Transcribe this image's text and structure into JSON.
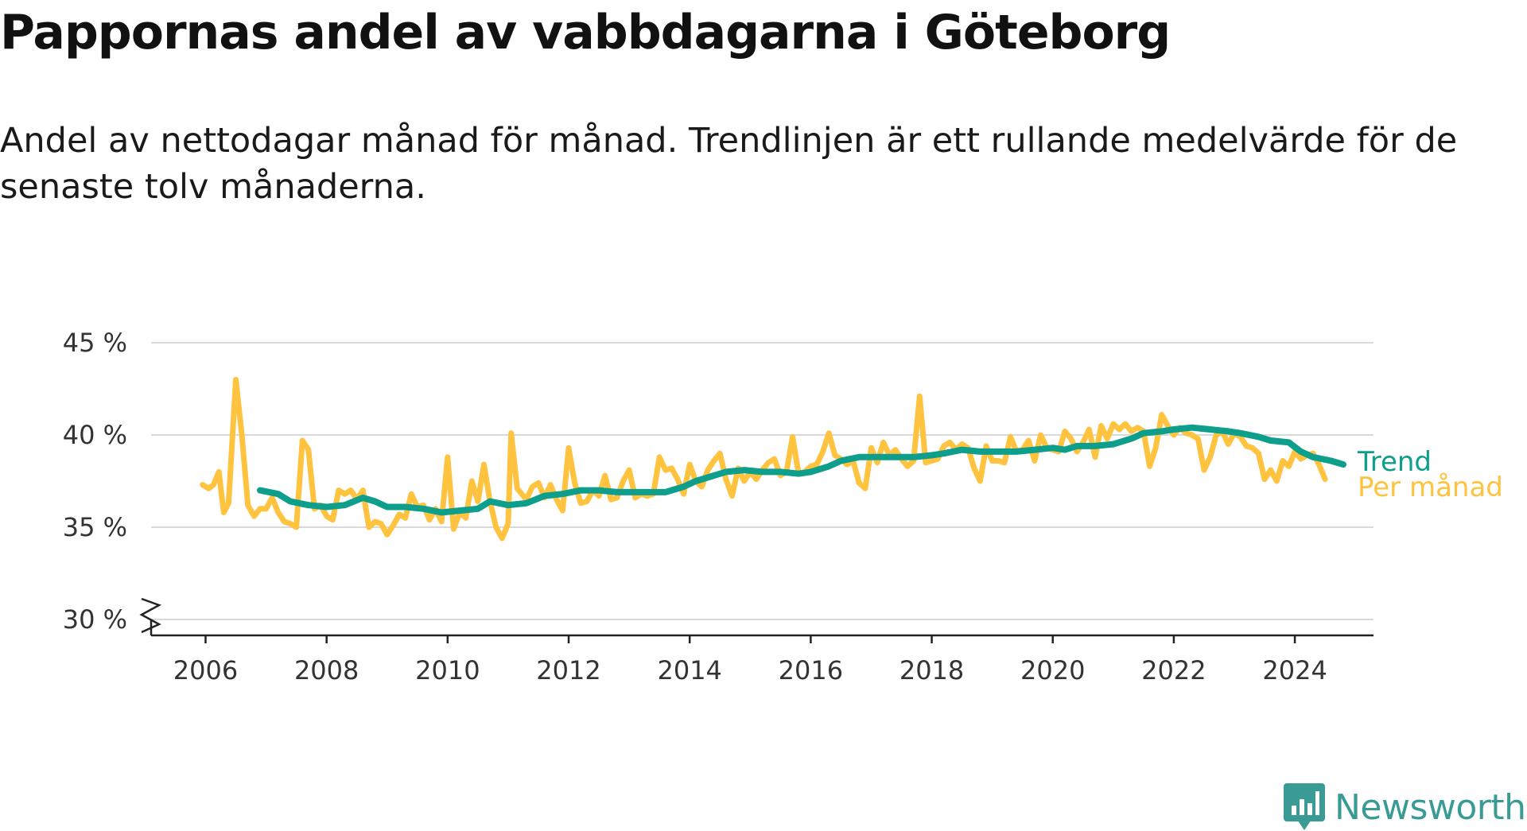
{
  "chart_data": {
    "type": "line",
    "title": "Pappornas andel av vabbdagarna i Göteborg",
    "subtitle": "Andel av nettodagar månad för månad. Trendlinjen är ett rullande medelvärde för de senaste tolv månaderna.",
    "y_unit": "%",
    "ylim": [
      30,
      45
    ],
    "y_ticks": [
      {
        "value": 30,
        "label": "30 %"
      },
      {
        "value": 35,
        "label": "35 %"
      },
      {
        "value": 40,
        "label": "40 %"
      },
      {
        "value": 45,
        "label": "45 %"
      }
    ],
    "y_axis_break": true,
    "x_range": [
      2005.1,
      2025.3
    ],
    "x_ticks": [
      {
        "value": 2006,
        "label": "2006"
      },
      {
        "value": 2008,
        "label": "2008"
      },
      {
        "value": 2010,
        "label": "2010"
      },
      {
        "value": 2012,
        "label": "2012"
      },
      {
        "value": 2014,
        "label": "2014"
      },
      {
        "value": 2016,
        "label": "2016"
      },
      {
        "value": 2018,
        "label": "2018"
      },
      {
        "value": 2020,
        "label": "2020"
      },
      {
        "value": 2022,
        "label": "2022"
      },
      {
        "value": 2024,
        "label": "2024"
      }
    ],
    "grid": true,
    "legend": "direct-labels-right",
    "series": [
      {
        "name": "Per månad",
        "color": "#ffc340",
        "points": [
          [
            2005.95,
            37.3
          ],
          [
            2006.05,
            37.1
          ],
          [
            2006.13,
            37.3
          ],
          [
            2006.22,
            38.0
          ],
          [
            2006.3,
            35.8
          ],
          [
            2006.38,
            36.3
          ],
          [
            2006.5,
            43.0
          ],
          [
            2006.6,
            40.0
          ],
          [
            2006.7,
            36.2
          ],
          [
            2006.8,
            35.6
          ],
          [
            2006.9,
            36.0
          ],
          [
            2007.0,
            36.0
          ],
          [
            2007.1,
            36.6
          ],
          [
            2007.2,
            35.8
          ],
          [
            2007.3,
            35.3
          ],
          [
            2007.4,
            35.2
          ],
          [
            2007.5,
            35.0
          ],
          [
            2007.6,
            39.7
          ],
          [
            2007.7,
            39.2
          ],
          [
            2007.8,
            36.0
          ],
          [
            2007.9,
            36.2
          ],
          [
            2008.0,
            35.6
          ],
          [
            2008.1,
            35.4
          ],
          [
            2008.2,
            37.0
          ],
          [
            2008.3,
            36.8
          ],
          [
            2008.4,
            37.0
          ],
          [
            2008.5,
            36.5
          ],
          [
            2008.6,
            37.0
          ],
          [
            2008.7,
            35.0
          ],
          [
            2008.8,
            35.3
          ],
          [
            2008.9,
            35.2
          ],
          [
            2009.0,
            34.6
          ],
          [
            2009.1,
            35.1
          ],
          [
            2009.2,
            35.7
          ],
          [
            2009.3,
            35.5
          ],
          [
            2009.4,
            36.8
          ],
          [
            2009.5,
            36.1
          ],
          [
            2009.6,
            36.2
          ],
          [
            2009.7,
            35.4
          ],
          [
            2009.8,
            36.0
          ],
          [
            2009.9,
            35.3
          ],
          [
            2010.0,
            38.8
          ],
          [
            2010.1,
            34.9
          ],
          [
            2010.2,
            35.8
          ],
          [
            2010.3,
            35.5
          ],
          [
            2010.4,
            37.5
          ],
          [
            2010.5,
            36.4
          ],
          [
            2010.6,
            38.4
          ],
          [
            2010.7,
            36.4
          ],
          [
            2010.8,
            35.0
          ],
          [
            2010.9,
            34.4
          ],
          [
            2011.0,
            35.2
          ],
          [
            2011.05,
            40.1
          ],
          [
            2011.15,
            37.1
          ],
          [
            2011.3,
            36.5
          ],
          [
            2011.4,
            37.2
          ],
          [
            2011.5,
            37.4
          ],
          [
            2011.6,
            36.6
          ],
          [
            2011.7,
            37.3
          ],
          [
            2011.8,
            36.5
          ],
          [
            2011.9,
            35.9
          ],
          [
            2012.0,
            39.3
          ],
          [
            2012.1,
            37.4
          ],
          [
            2012.2,
            36.3
          ],
          [
            2012.3,
            36.4
          ],
          [
            2012.4,
            37.0
          ],
          [
            2012.5,
            36.7
          ],
          [
            2012.6,
            37.8
          ],
          [
            2012.7,
            36.5
          ],
          [
            2012.8,
            36.6
          ],
          [
            2012.9,
            37.5
          ],
          [
            2013.0,
            38.1
          ],
          [
            2013.1,
            36.6
          ],
          [
            2013.2,
            36.8
          ],
          [
            2013.3,
            36.7
          ],
          [
            2013.4,
            36.8
          ],
          [
            2013.5,
            38.8
          ],
          [
            2013.6,
            38.1
          ],
          [
            2013.7,
            38.2
          ],
          [
            2013.8,
            37.6
          ],
          [
            2013.9,
            36.8
          ],
          [
            2014.0,
            38.4
          ],
          [
            2014.1,
            37.5
          ],
          [
            2014.2,
            37.2
          ],
          [
            2014.3,
            38.1
          ],
          [
            2014.4,
            38.6
          ],
          [
            2014.5,
            39.0
          ],
          [
            2014.6,
            37.6
          ],
          [
            2014.7,
            36.7
          ],
          [
            2014.8,
            38.2
          ],
          [
            2014.9,
            37.5
          ],
          [
            2015.0,
            38.0
          ],
          [
            2015.1,
            37.6
          ],
          [
            2015.2,
            38.1
          ],
          [
            2015.3,
            38.5
          ],
          [
            2015.4,
            38.7
          ],
          [
            2015.5,
            37.8
          ],
          [
            2015.6,
            38.0
          ],
          [
            2015.7,
            39.9
          ],
          [
            2015.8,
            37.9
          ],
          [
            2015.9,
            38.0
          ],
          [
            2016.0,
            38.3
          ],
          [
            2016.1,
            38.4
          ],
          [
            2016.2,
            39.1
          ],
          [
            2016.3,
            40.1
          ],
          [
            2016.4,
            38.9
          ],
          [
            2016.5,
            38.7
          ],
          [
            2016.6,
            38.4
          ],
          [
            2016.7,
            38.6
          ],
          [
            2016.8,
            37.4
          ],
          [
            2016.9,
            37.1
          ],
          [
            2017.0,
            39.3
          ],
          [
            2017.1,
            38.5
          ],
          [
            2017.2,
            39.6
          ],
          [
            2017.3,
            38.9
          ],
          [
            2017.4,
            39.2
          ],
          [
            2017.5,
            38.7
          ],
          [
            2017.6,
            38.3
          ],
          [
            2017.7,
            38.6
          ],
          [
            2017.8,
            42.1
          ],
          [
            2017.9,
            38.5
          ],
          [
            2018.0,
            38.6
          ],
          [
            2018.1,
            38.7
          ],
          [
            2018.2,
            39.4
          ],
          [
            2018.3,
            39.6
          ],
          [
            2018.4,
            39.2
          ],
          [
            2018.5,
            39.5
          ],
          [
            2018.6,
            39.3
          ],
          [
            2018.7,
            38.2
          ],
          [
            2018.8,
            37.5
          ],
          [
            2018.9,
            39.4
          ],
          [
            2019.0,
            38.6
          ],
          [
            2019.1,
            38.6
          ],
          [
            2019.2,
            38.5
          ],
          [
            2019.3,
            39.9
          ],
          [
            2019.4,
            39.1
          ],
          [
            2019.5,
            39.2
          ],
          [
            2019.6,
            39.7
          ],
          [
            2019.7,
            38.6
          ],
          [
            2019.8,
            40.0
          ],
          [
            2019.9,
            39.3
          ],
          [
            2020.0,
            39.2
          ],
          [
            2020.1,
            39.1
          ],
          [
            2020.2,
            40.2
          ],
          [
            2020.3,
            39.8
          ],
          [
            2020.4,
            39.1
          ],
          [
            2020.5,
            39.6
          ],
          [
            2020.6,
            40.3
          ],
          [
            2020.7,
            38.8
          ],
          [
            2020.8,
            40.5
          ],
          [
            2020.9,
            39.8
          ],
          [
            2021.0,
            40.6
          ],
          [
            2021.1,
            40.3
          ],
          [
            2021.2,
            40.6
          ],
          [
            2021.3,
            40.2
          ],
          [
            2021.4,
            40.4
          ],
          [
            2021.5,
            40.2
          ],
          [
            2021.6,
            38.3
          ],
          [
            2021.7,
            39.3
          ],
          [
            2021.8,
            41.1
          ],
          [
            2021.9,
            40.5
          ],
          [
            2022.0,
            40.0
          ],
          [
            2022.1,
            40.4
          ],
          [
            2022.2,
            40.1
          ],
          [
            2022.3,
            40.0
          ],
          [
            2022.4,
            39.8
          ],
          [
            2022.5,
            38.1
          ],
          [
            2022.6,
            38.8
          ],
          [
            2022.7,
            40.0
          ],
          [
            2022.8,
            40.2
          ],
          [
            2022.9,
            39.5
          ],
          [
            2023.0,
            40.1
          ],
          [
            2023.1,
            39.9
          ],
          [
            2023.2,
            39.4
          ],
          [
            2023.3,
            39.3
          ],
          [
            2023.4,
            39.0
          ],
          [
            2023.5,
            37.6
          ],
          [
            2023.6,
            38.1
          ],
          [
            2023.7,
            37.5
          ],
          [
            2023.8,
            38.6
          ],
          [
            2023.9,
            38.3
          ],
          [
            2024.0,
            39.1
          ],
          [
            2024.1,
            38.7
          ],
          [
            2024.2,
            38.9
          ],
          [
            2024.3,
            39.0
          ],
          [
            2024.4,
            38.4
          ],
          [
            2024.5,
            37.6
          ]
        ]
      },
      {
        "name": "Trend",
        "color": "#0d9e8c",
        "points": [
          [
            2006.9,
            37.0
          ],
          [
            2007.2,
            36.8
          ],
          [
            2007.4,
            36.4
          ],
          [
            2007.7,
            36.2
          ],
          [
            2008.0,
            36.1
          ],
          [
            2008.3,
            36.2
          ],
          [
            2008.6,
            36.6
          ],
          [
            2008.8,
            36.4
          ],
          [
            2009.0,
            36.1
          ],
          [
            2009.3,
            36.1
          ],
          [
            2009.6,
            36.0
          ],
          [
            2009.9,
            35.8
          ],
          [
            2010.2,
            35.9
          ],
          [
            2010.5,
            36.0
          ],
          [
            2010.7,
            36.4
          ],
          [
            2011.0,
            36.2
          ],
          [
            2011.3,
            36.3
          ],
          [
            2011.6,
            36.7
          ],
          [
            2011.9,
            36.8
          ],
          [
            2012.2,
            37.0
          ],
          [
            2012.5,
            37.0
          ],
          [
            2012.8,
            36.9
          ],
          [
            2013.0,
            36.9
          ],
          [
            2013.2,
            36.9
          ],
          [
            2013.6,
            36.9
          ],
          [
            2013.9,
            37.2
          ],
          [
            2014.1,
            37.5
          ],
          [
            2014.3,
            37.7
          ],
          [
            2014.6,
            38.0
          ],
          [
            2014.9,
            38.1
          ],
          [
            2015.2,
            38.0
          ],
          [
            2015.5,
            38.0
          ],
          [
            2015.8,
            37.9
          ],
          [
            2016.0,
            38.0
          ],
          [
            2016.3,
            38.3
          ],
          [
            2016.5,
            38.6
          ],
          [
            2016.8,
            38.8
          ],
          [
            2017.1,
            38.8
          ],
          [
            2017.4,
            38.8
          ],
          [
            2017.7,
            38.8
          ],
          [
            2018.0,
            38.9
          ],
          [
            2018.2,
            39.0
          ],
          [
            2018.5,
            39.2
          ],
          [
            2018.8,
            39.1
          ],
          [
            2019.1,
            39.1
          ],
          [
            2019.4,
            39.1
          ],
          [
            2019.7,
            39.2
          ],
          [
            2020.0,
            39.3
          ],
          [
            2020.2,
            39.2
          ],
          [
            2020.4,
            39.4
          ],
          [
            2020.7,
            39.4
          ],
          [
            2021.0,
            39.5
          ],
          [
            2021.3,
            39.8
          ],
          [
            2021.5,
            40.1
          ],
          [
            2021.8,
            40.2
          ],
          [
            2022.0,
            40.3
          ],
          [
            2022.3,
            40.4
          ],
          [
            2022.6,
            40.3
          ],
          [
            2022.9,
            40.2
          ],
          [
            2023.1,
            40.1
          ],
          [
            2023.4,
            39.9
          ],
          [
            2023.6,
            39.7
          ],
          [
            2023.9,
            39.6
          ],
          [
            2024.1,
            39.1
          ],
          [
            2024.3,
            38.8
          ],
          [
            2024.6,
            38.6
          ],
          [
            2024.8,
            38.4
          ]
        ]
      }
    ]
  },
  "brand": {
    "logo_text": "Newsworthy",
    "logo_icon": "bar-chart-speech-bubble-icon",
    "color": "#3a9a94"
  }
}
